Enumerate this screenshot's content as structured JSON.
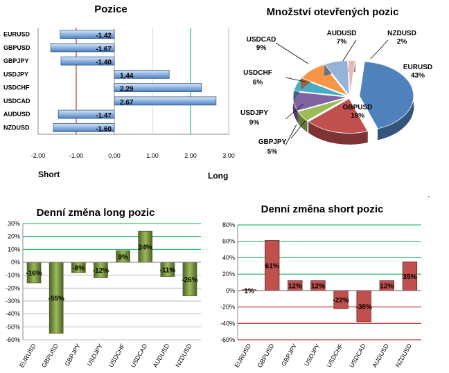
{
  "chart_data": [
    {
      "type": "bar",
      "orientation": "horizontal",
      "title": "Pozice",
      "categories": [
        "EURUSD",
        "GBPUSD",
        "GBPJPY",
        "USDJPY",
        "USDCHF",
        "USDCAD",
        "AUDUSD",
        "NZDUSD"
      ],
      "values": [
        -1.42,
        -1.67,
        -1.4,
        1.44,
        2.29,
        2.67,
        -1.47,
        -1.6
      ],
      "value_labels": [
        "-1.42",
        "-1.67",
        "-1.40",
        "1.44",
        "2.29",
        "2.67",
        "-1.47",
        "-1.60"
      ],
      "xlim": [
        -2.0,
        3.0
      ],
      "xticks": [
        -2.0,
        -1.0,
        0.0,
        1.0,
        2.0,
        3.0
      ],
      "xtick_labels": [
        "-2.00",
        "-1.00",
        "0.00",
        "1.00",
        "2.00",
        "3.00"
      ],
      "axis_note_left": "Short",
      "axis_note_right": "Long",
      "colors": {
        "bar": "#4f81bd",
        "bar_light": "#dce6f2",
        "line_red": "#c00000",
        "line_green": "#00b050"
      }
    },
    {
      "type": "pie",
      "title": "Množství otevřených pozic",
      "slices": [
        {
          "name": "EURUSD",
          "value": 43,
          "label": "43%",
          "color": "#4f81bd"
        },
        {
          "name": "GBPUSD",
          "value": 19,
          "label": "19%",
          "color": "#c0504d"
        },
        {
          "name": "GBPJPY",
          "value": 5,
          "label": "5%",
          "color": "#9bbb59"
        },
        {
          "name": "USDJPY",
          "value": 9,
          "label": "9%",
          "color": "#8064a2"
        },
        {
          "name": "USDCHF",
          "value": 6,
          "label": "6%",
          "color": "#4bacc6"
        },
        {
          "name": "USDCAD",
          "value": 9,
          "label": "9%",
          "color": "#f79646"
        },
        {
          "name": "AUDUSD",
          "value": 7,
          "label": "7%",
          "color": "#95b3d7"
        },
        {
          "name": "NZDUSD",
          "value": 2,
          "label": "2%",
          "color": "#e6b9b8"
        }
      ]
    },
    {
      "type": "bar",
      "title": "Denní změna long pozic",
      "categories": [
        "EURUSD",
        "GBPUSD",
        "GBPJPY",
        "USDJPY",
        "USDCHF",
        "USDCAD",
        "AUDUSD",
        "NZDUSD"
      ],
      "values": [
        -16,
        -55,
        -8,
        -12,
        9,
        24,
        -11,
        -26
      ],
      "value_labels": [
        "-16%",
        "-55%",
        "-8%",
        "-12%",
        "9%",
        "24%",
        "-11%",
        "-26%"
      ],
      "ylim": [
        -60,
        30
      ],
      "yticks": [
        -60,
        -50,
        -40,
        -30,
        -20,
        -10,
        0,
        10,
        20,
        30
      ],
      "ytick_labels": [
        "-60%",
        "-50%",
        "-40%",
        "-30%",
        "-20%",
        "-10%",
        "0%",
        "10%",
        "20%",
        "30%"
      ],
      "colors": {
        "bar": "#77933c",
        "bar_dark": "#4f6228",
        "bar_light": "#d7e4bd",
        "grid": "#00b050"
      }
    },
    {
      "type": "bar",
      "title": "Denní změna short pozic",
      "categories": [
        "EURUSD",
        "GBPUSD",
        "GBPJPY",
        "USDJPY",
        "USDCHF",
        "USDCAD",
        "AUDUSD",
        "NZDUSD"
      ],
      "values": [
        1,
        61,
        12,
        12,
        -22,
        -38,
        12,
        35
      ],
      "value_labels": [
        "1%",
        "61%",
        "12%",
        "12%",
        "-22%",
        "-38%",
        "12%",
        "35%"
      ],
      "ylim": [
        -60,
        80
      ],
      "yticks": [
        -60,
        -40,
        -20,
        0,
        20,
        40,
        60,
        80
      ],
      "ytick_labels": [
        "-60%",
        "-40%",
        "-20%",
        "0%",
        "20%",
        "40%",
        "60%",
        "80%"
      ],
      "colors": {
        "bar": "#c0504d",
        "bar_dark": "#632523",
        "grid_pos": "#00b050",
        "grid_neg": "#c00000"
      }
    }
  ]
}
